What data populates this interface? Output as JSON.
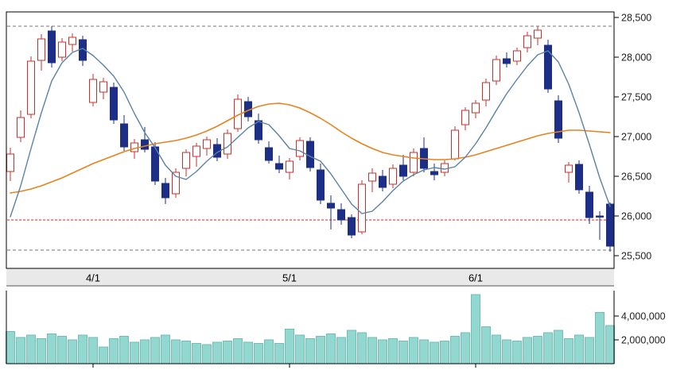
{
  "widget": {
    "kind": "daily-stock-chart-with-volume"
  },
  "chart_data": {
    "type": "candlestick_with_volume",
    "title": "",
    "x_axis": {
      "tick_labels": [
        {
          "label": "4/1",
          "index": 8
        },
        {
          "label": "5/1",
          "index": 27
        },
        {
          "label": "6/1",
          "index": 45
        }
      ]
    },
    "price_axis": {
      "tick_values": [
        28500,
        28000,
        27500,
        27000,
        26500,
        26000,
        25500
      ],
      "tick_labels": [
        "28,500",
        "28,000",
        "27,500",
        "27,000",
        "26,500",
        "26,000",
        "25,500"
      ],
      "range": [
        25340,
        28570
      ]
    },
    "volume_axis": {
      "tick_values": [
        4000000,
        2000000
      ],
      "tick_labels": [
        "4,000,000",
        "2,000,000"
      ],
      "range": [
        0,
        6100000
      ]
    },
    "levels": [
      {
        "name": "resistance-upper",
        "value": 28390,
        "color": "#777777",
        "dash": "4,3"
      },
      {
        "name": "support-red",
        "value": 25950,
        "color": "#e02020",
        "dash": "3,2"
      },
      {
        "name": "support-lower",
        "value": 25570,
        "color": "#777777",
        "dash": "4,3"
      }
    ],
    "series": {
      "open": [
        26560,
        26990,
        27280,
        27960,
        28330,
        28000,
        28160,
        28220,
        27430,
        27560,
        27620,
        27160,
        26810,
        26960,
        26870,
        26410,
        26280,
        26600,
        26750,
        26850,
        26900,
        26780,
        27100,
        27440,
        27200,
        26860,
        26660,
        26550,
        26750,
        26940,
        26580,
        26160,
        26080,
        25980,
        25800,
        26440,
        26500,
        26400,
        26640,
        26550,
        26850,
        26560,
        26550,
        26720,
        27150,
        27300,
        27460,
        27700,
        27980,
        27950,
        28120,
        28240,
        28150,
        27450,
        26550,
        26650,
        26300,
        26000,
        26150
      ],
      "high": [
        26860,
        27330,
        28010,
        28290,
        28390,
        28240,
        28300,
        28270,
        27790,
        27740,
        27680,
        27270,
        26970,
        27120,
        26930,
        26480,
        26600,
        26840,
        26920,
        27000,
        26980,
        27090,
        27530,
        27500,
        27290,
        26940,
        26760,
        26730,
        26990,
        26990,
        26660,
        26260,
        26160,
        26020,
        26450,
        26600,
        26580,
        26650,
        26770,
        26850,
        26990,
        26660,
        26700,
        27130,
        27370,
        27460,
        27730,
        28020,
        28060,
        28120,
        28320,
        28390,
        28220,
        27520,
        26680,
        26700,
        26380,
        26060,
        26170
      ],
      "low": [
        26440,
        26930,
        27230,
        27830,
        27870,
        27950,
        28070,
        27890,
        27380,
        27470,
        27160,
        26820,
        26720,
        26800,
        26390,
        26150,
        26230,
        26500,
        26620,
        26760,
        26690,
        26720,
        27060,
        27190,
        26910,
        26660,
        26540,
        26460,
        26700,
        26560,
        26150,
        25830,
        25890,
        25720,
        25770,
        26300,
        26310,
        26350,
        26450,
        26500,
        26550,
        26450,
        26500,
        26700,
        27080,
        27230,
        27380,
        27650,
        27870,
        27900,
        28060,
        28150,
        27550,
        26920,
        26420,
        26280,
        25900,
        25700,
        25550
      ],
      "close": [
        26780,
        27240,
        27950,
        28230,
        27930,
        28190,
        28250,
        27960,
        27720,
        27690,
        27210,
        26870,
        26920,
        26840,
        26440,
        26230,
        26550,
        26800,
        26880,
        26960,
        26740,
        27040,
        27470,
        27250,
        26960,
        26700,
        26590,
        26690,
        26950,
        26610,
        26200,
        26100,
        25950,
        25760,
        26400,
        26540,
        26360,
        26600,
        26500,
        26800,
        26600,
        26520,
        26660,
        27080,
        27330,
        27420,
        27680,
        27970,
        27920,
        28080,
        28270,
        28340,
        27600,
        26980,
        26640,
        26330,
        25980,
        25990,
        25620
      ],
      "volume": [
        2700000,
        2200000,
        2400000,
        2100000,
        2500000,
        2300000,
        2000000,
        2400000,
        2200000,
        1400000,
        2100000,
        2300000,
        1800000,
        2000000,
        2200000,
        2400000,
        2000000,
        1900000,
        1700000,
        1600000,
        1800000,
        1900000,
        2100000,
        1800000,
        1700000,
        2000000,
        1700000,
        2900000,
        2400000,
        2100000,
        2300000,
        2500000,
        2200000,
        2800000,
        2600000,
        2200000,
        2000000,
        2100000,
        1900000,
        2200000,
        2000000,
        1800000,
        1900000,
        2300000,
        2600000,
        5800000,
        3100000,
        2400000,
        2000000,
        1900000,
        2200000,
        2300000,
        2600000,
        2800000,
        2100000,
        2400000,
        2200000,
        4300000,
        3200000
      ],
      "ma_short": [
        25990,
        26380,
        26850,
        27300,
        27700,
        27930,
        28060,
        28110,
        28020,
        27900,
        27760,
        27560,
        27290,
        27050,
        26860,
        26640,
        26500,
        26460,
        26560,
        26690,
        26800,
        26870,
        26990,
        27110,
        27190,
        27150,
        27010,
        26850,
        26820,
        26750,
        26690,
        26530,
        26340,
        26150,
        26030,
        26060,
        26180,
        26320,
        26440,
        26520,
        26580,
        26610,
        26590,
        26620,
        26740,
        26910,
        27110,
        27330,
        27540,
        27720,
        27890,
        28030,
        28080,
        27940,
        27660,
        27300,
        26900,
        26480,
        26120
      ],
      "ma_long": [
        26290,
        26310,
        26340,
        26380,
        26430,
        26480,
        26540,
        26600,
        26660,
        26710,
        26760,
        26810,
        26850,
        26880,
        26910,
        26930,
        26950,
        26980,
        27020,
        27070,
        27130,
        27200,
        27270,
        27330,
        27380,
        27410,
        27420,
        27400,
        27360,
        27300,
        27230,
        27150,
        27060,
        26980,
        26910,
        26850,
        26800,
        26770,
        26750,
        26730,
        26720,
        26710,
        26710,
        26720,
        26740,
        26770,
        26810,
        26850,
        26890,
        26930,
        26970,
        27010,
        27040,
        27060,
        27080,
        27080,
        27070,
        27060,
        27050
      ]
    },
    "colors": {
      "up_stroke": "#c9302c",
      "up_fill": "#ffffff",
      "down_fill": "#1c2e86",
      "ma_short": "#5b82a6",
      "ma_long": "#e8821e",
      "volume_fill": "#93d8d0",
      "volume_stroke": "#6fbfb5",
      "band_fill": "#e9e9e9",
      "frame": "#000000",
      "label": "#1f1f1f"
    }
  }
}
